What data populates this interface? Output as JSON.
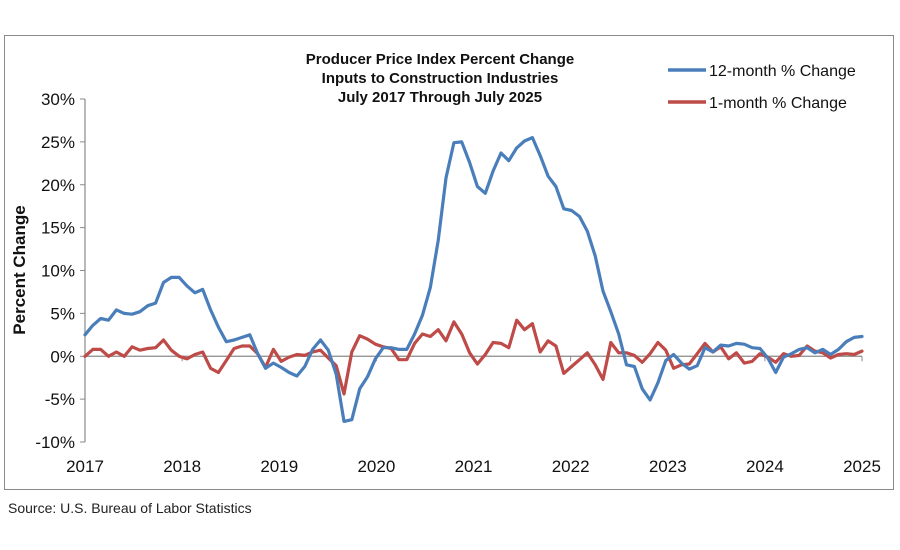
{
  "chart_data": {
    "type": "line",
    "title": [
      "Producer Price Index Percent Change",
      "Inputs to Construction Industries",
      "July 2017 Through July 2025"
    ],
    "xlabel": "",
    "ylabel": "Percent Change",
    "ylim": [
      -10,
      30
    ],
    "yticks": [
      -10,
      -5,
      0,
      5,
      10,
      15,
      20,
      25,
      30
    ],
    "ytick_labels": [
      "-10%",
      "-5%",
      "0%",
      "5%",
      "10%",
      "15%",
      "20%",
      "25%",
      "30%"
    ],
    "xticks": [
      "2017",
      "2018",
      "2019",
      "2020",
      "2021",
      "2022",
      "2023",
      "2024",
      "2025"
    ],
    "grid": false,
    "legend_position": "top-right",
    "x_start": "July 2017",
    "x_step": "month",
    "series": [
      {
        "name": "12-month % Change",
        "color": "#4a7ebb",
        "values": [
          2.5,
          3.6,
          4.4,
          4.2,
          5.4,
          5.0,
          4.9,
          5.2,
          5.9,
          6.2,
          8.6,
          9.2,
          9.2,
          8.2,
          7.4,
          7.8,
          5.4,
          3.4,
          1.7,
          1.9,
          2.2,
          2.5,
          0.3,
          -1.4,
          -0.8,
          -1.3,
          -1.9,
          -2.3,
          -1.2,
          0.8,
          1.9,
          0.7,
          -2.1,
          -7.6,
          -7.4,
          -3.8,
          -2.4,
          -0.3,
          1.0,
          1.0,
          0.8,
          0.8,
          2.6,
          4.8,
          8.0,
          13.5,
          20.8,
          24.9,
          25.0,
          22.6,
          19.8,
          19.0,
          21.6,
          23.7,
          22.8,
          24.3,
          25.1,
          25.5,
          23.4,
          21.0,
          19.8,
          17.2,
          17.0,
          16.3,
          14.6,
          11.7,
          7.6,
          5.2,
          2.6,
          -1.0,
          -1.2,
          -3.8,
          -5.1,
          -3.1,
          -0.5,
          0.2,
          -0.8,
          -1.5,
          -1.1,
          1.0,
          0.5,
          1.3,
          1.2,
          1.5,
          1.4,
          1.0,
          0.9,
          -0.2,
          -1.9,
          -0.1,
          0.3,
          0.8,
          1.0,
          0.4,
          0.8,
          0.2,
          0.8,
          1.7,
          2.2,
          2.3
        ]
      },
      {
        "name": "1-month % Change",
        "color": "#be4b48",
        "values": [
          0.0,
          0.8,
          0.8,
          0.0,
          0.5,
          0.0,
          1.1,
          0.7,
          0.9,
          1.0,
          1.9,
          0.7,
          0.0,
          -0.3,
          0.2,
          0.5,
          -1.4,
          -1.9,
          -0.5,
          0.9,
          1.2,
          1.2,
          0.3,
          -1.3,
          0.8,
          -0.6,
          -0.1,
          0.2,
          0.1,
          0.5,
          0.7,
          -0.2,
          -1.1,
          -4.4,
          0.5,
          2.4,
          2.0,
          1.4,
          1.1,
          0.9,
          -0.4,
          -0.4,
          1.5,
          2.6,
          2.3,
          3.1,
          1.8,
          4.0,
          2.6,
          0.4,
          -0.9,
          0.2,
          1.6,
          1.5,
          1.0,
          4.2,
          3.1,
          3.8,
          0.5,
          1.8,
          1.2,
          -2.0,
          -1.2,
          -0.4,
          0.4,
          -1.0,
          -2.7,
          1.6,
          0.4,
          0.4,
          0.1,
          -0.7,
          0.3,
          1.6,
          0.7,
          -1.4,
          -1.0,
          -0.9,
          0.3,
          1.5,
          0.5,
          1.1,
          -0.3,
          0.4,
          -0.8,
          -0.6,
          0.3,
          -0.1,
          -0.7,
          0.3,
          0.0,
          0.1,
          1.2,
          0.6,
          0.4,
          -0.2,
          0.2,
          0.3,
          0.2,
          0.6
        ]
      }
    ]
  },
  "source": "Source: U.S. Bureau of Labor Statistics"
}
